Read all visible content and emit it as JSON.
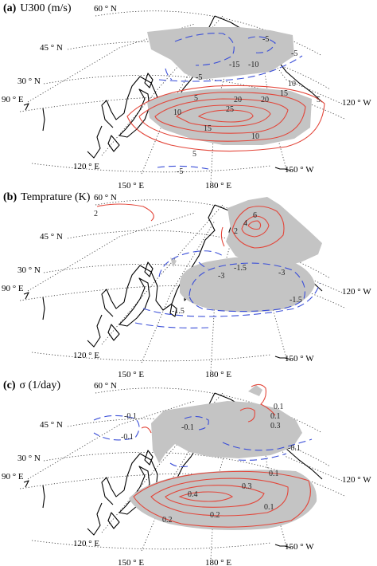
{
  "panels": [
    {
      "id": "a",
      "letter": "(a)",
      "title": "U300 (m/s)",
      "latitude_labels": [
        "60 ° N",
        "45 ° N",
        "30 ° N"
      ],
      "longitude_labels": [
        "90 ° E",
        "120 ° E",
        "150 ° E",
        "180 ° E",
        "150 ° W",
        "120 ° W"
      ],
      "positive_contour_labels": [
        "5",
        "10",
        "15",
        "20",
        "25",
        "20",
        "15",
        "10",
        "10",
        "5",
        "5"
      ],
      "negative_contour_labels": [
        "-5",
        "-15",
        "-10",
        "-5",
        "-5",
        "-5"
      ]
    },
    {
      "id": "b",
      "letter": "(b)",
      "title": "Temprature (K)",
      "latitude_labels": [
        "60 ° N",
        "45 ° N",
        "30 ° N"
      ],
      "longitude_labels": [
        "90 ° E",
        "120 ° E",
        "150 ° E",
        "180 ° E",
        "150 ° W",
        "120 ° W"
      ],
      "positive_contour_labels": [
        "2",
        "6",
        "4",
        "2"
      ],
      "negative_contour_labels": [
        "-1.5",
        "-3",
        "-1.5",
        "-3",
        "-1.5"
      ]
    },
    {
      "id": "c",
      "letter": "(c)",
      "title": "σ (1/day)",
      "latitude_labels": [
        "60 ° N",
        "45 ° N",
        "30 ° N"
      ],
      "longitude_labels": [
        "90 ° E",
        "120 ° E",
        "150 ° E",
        "180 ° E",
        "150 ° W",
        "120 ° W"
      ],
      "positive_contour_labels": [
        "0.1",
        "0.4",
        "0.3",
        "0.2",
        "0.2",
        "0.1",
        "0.1",
        "0.3",
        "0.1"
      ],
      "negative_contour_labels": [
        "-0.1",
        "-0.1",
        "-0.1",
        "-0.1"
      ]
    }
  ],
  "colors": {
    "positive_contour": "#e3463a",
    "negative_contour": "#3b4fd8",
    "shading": "#c4c4c4"
  }
}
